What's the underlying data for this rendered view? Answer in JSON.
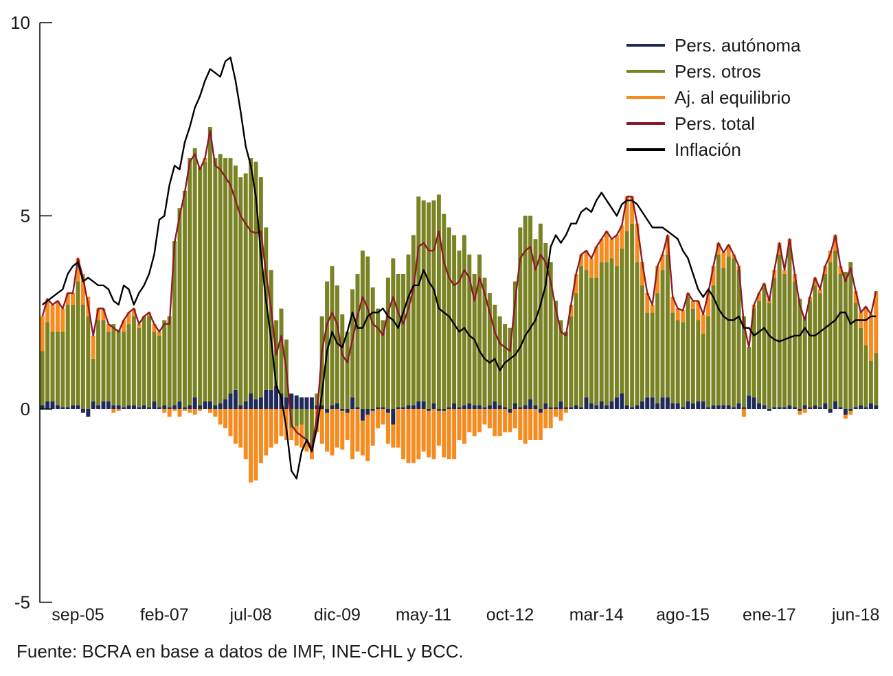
{
  "chart_data": {
    "type": "bar",
    "stacked": true,
    "title": "",
    "xlabel": "",
    "ylabel": "",
    "ylim": [
      -5,
      10
    ],
    "y_ticks": [
      "10",
      "5",
      "0",
      "-5"
    ],
    "y_tick_values": [
      10,
      5,
      0,
      -5
    ],
    "x_ticks": [
      {
        "label": "sep-05",
        "index": 7
      },
      {
        "label": "feb-07",
        "index": 24
      },
      {
        "label": "jul-08",
        "index": 41
      },
      {
        "label": "dic-09",
        "index": 58
      },
      {
        "label": "may-11",
        "index": 75
      },
      {
        "label": "oct-12",
        "index": 92
      },
      {
        "label": "mar-14",
        "index": 109
      },
      {
        "label": "ago-15",
        "index": 126
      },
      {
        "label": "ene-17",
        "index": 143
      },
      {
        "label": "jun-18",
        "index": 160
      }
    ],
    "grid": false,
    "legend_position": "top-right",
    "series": [
      {
        "name": "Pers. autónoma",
        "kind": "bar",
        "color": "#1f2a5a",
        "values": [
          0.1,
          0.2,
          0.2,
          0.1,
          0.05,
          0.05,
          0.1,
          0.1,
          -0.1,
          -0.2,
          0.2,
          0.1,
          0.2,
          0.2,
          0.1,
          0.1,
          0.05,
          0.1,
          0.1,
          0.05,
          0.1,
          0.05,
          0.2,
          0.05,
          0.1,
          0.05,
          0.1,
          0.2,
          0.05,
          0.1,
          0.3,
          0.1,
          0.2,
          0.2,
          0.1,
          0.15,
          0.25,
          0.4,
          0.5,
          0.1,
          0.2,
          0.4,
          0.25,
          0.3,
          0.5,
          0.5,
          0.6,
          0.4,
          0.3,
          0.4,
          0.35,
          0.3,
          0.3,
          0.3,
          0.1,
          0.1,
          -0.1,
          0.1,
          0.15,
          -0.05,
          -0.1,
          0.3,
          0.05,
          -0.3,
          -0.15,
          -0.05,
          0.05,
          0.05,
          -0.1,
          -0.4,
          0.05,
          0.05,
          0.1,
          0.1,
          0.2,
          0.2,
          -0.05,
          0.15,
          -0.05,
          -0.05,
          0.05,
          0.15,
          0.05,
          0.1,
          0.15,
          0.1,
          0.1,
          0.05,
          0.1,
          0.2,
          0.1,
          0.05,
          -0.1,
          0.15,
          0.05,
          0.1,
          0.25,
          0.1,
          -0.1,
          0.15,
          0.05,
          0.05,
          0.2,
          0.05,
          0.05,
          0.1,
          0.05,
          0.3,
          0.15,
          0.1,
          0.2,
          0.1,
          0.2,
          0.3,
          0.4,
          0.1,
          0.05,
          0.1,
          0.2,
          0.3,
          0.3,
          0.15,
          0.3,
          0.3,
          0.15,
          0.15,
          0.05,
          0.2,
          0.15,
          0.2,
          0.2,
          0.05,
          0.1,
          0.1,
          0.1,
          0.1,
          0.05,
          0.15,
          0.05,
          0.35,
          0.3,
          0.15,
          0.1,
          -0.05,
          0.05,
          0.05,
          0.05,
          0.1,
          0.05,
          -0.05,
          0.1,
          0.05,
          0.1,
          0.05,
          0.15,
          -0.1,
          0.2,
          0.05,
          -0.15,
          -0.05,
          0.05,
          0.1,
          0.05,
          0.15,
          0.1
        ]
      },
      {
        "name": "Pers. otros",
        "kind": "bar",
        "color": "#7a8324",
        "values": [
          1.4,
          2.05,
          1.8,
          1.9,
          1.95,
          2.65,
          2.6,
          3.2,
          2.7,
          2.4,
          1.1,
          2.2,
          2.1,
          1.8,
          2.1,
          1.95,
          1.95,
          2.1,
          2.3,
          2.05,
          2.3,
          2.35,
          1.8,
          1.85,
          2.2,
          2.35,
          4.25,
          5.0,
          5.6,
          6.4,
          6.45,
          6.15,
          6.2,
          7.1,
          6.4,
          6.45,
          6.25,
          6.1,
          5.8,
          5.9,
          5.9,
          6.1,
          6.15,
          5.7,
          4.2,
          3.1,
          1.7,
          2.2,
          1.5,
          -0.5,
          -0.45,
          -0.4,
          -0.8,
          -0.9,
          0.3,
          2.3,
          3.3,
          3.6,
          3.05,
          2.45,
          2.0,
          2.8,
          3.45,
          4.1,
          3.95,
          3.15,
          2.55,
          2.25,
          3.4,
          3.9,
          3.45,
          3.45,
          3.9,
          4.4,
          5.3,
          5.2,
          5.35,
          5.25,
          5.55,
          5.05,
          4.65,
          4.35,
          4.05,
          4.4,
          3.85,
          3.4,
          3.9,
          3.35,
          2.9,
          2.5,
          2.3,
          2.15,
          2.1,
          3.15,
          4.65,
          4.9,
          4.75,
          4.3,
          4.8,
          4.15,
          3.75,
          2.75,
          2.1,
          1.95,
          2.35,
          2.9,
          3.65,
          3.3,
          3.25,
          3.3,
          3.6,
          3.7,
          3.7,
          3.4,
          3.75,
          4.5,
          4.75,
          3.7,
          3.0,
          2.2,
          2.2,
          2.85,
          3.3,
          3.7,
          2.35,
          2.15,
          2.2,
          2.7,
          2.45,
          2.1,
          1.75,
          2.35,
          3.1,
          3.9,
          3.55,
          3.85,
          3.85,
          3.45,
          2.35,
          1.25,
          2.3,
          2.65,
          3.05,
          2.75,
          3.35,
          3.95,
          3.45,
          4.1,
          3.25,
          2.85,
          2.3,
          2.75,
          3.1,
          2.95,
          3.35,
          3.8,
          3.9,
          3.45,
          3.55,
          3.8,
          2.7,
          2.0,
          1.6,
          1.1,
          1.35
        ]
      },
      {
        "name": "Aj. al equilibrio",
        "kind": "bar",
        "color": "#f68b1f",
        "values": [
          0.9,
          0.6,
          0.7,
          0.8,
          0.6,
          0.3,
          0.3,
          0.6,
          0.8,
          0.5,
          0.6,
          0.3,
          0.3,
          0.2,
          -0.1,
          -0.05,
          0.3,
          0.3,
          0.2,
          0.1,
          0,
          0.1,
          0.2,
          0.1,
          -0.1,
          -0.2,
          -0.05,
          -0.2,
          -0.05,
          -0.1,
          -0.15,
          -0.05,
          0.1,
          -0.1,
          -0.2,
          -0.4,
          -0.5,
          -0.7,
          -0.9,
          -1.0,
          -1.3,
          -1.9,
          -1.85,
          -1.4,
          -1.2,
          -1.0,
          -0.9,
          -0.7,
          -0.8,
          -0.3,
          -0.5,
          -0.6,
          -0.3,
          -0.4,
          -0.6,
          -0.9,
          -1.0,
          -1.2,
          -1.0,
          -1.0,
          -0.7,
          -1.3,
          -1.1,
          -0.9,
          -1.2,
          -0.9,
          -0.5,
          -0.4,
          -0.8,
          -0.6,
          -1.0,
          -1.3,
          -1.4,
          -1.4,
          -1.3,
          -1.1,
          -1.2,
          -1.3,
          -0.9,
          -1.2,
          -1.3,
          -1.3,
          -0.8,
          -0.9,
          -0.6,
          -0.7,
          -0.6,
          -0.4,
          -0.5,
          -0.7,
          -0.7,
          -0.6,
          -0.5,
          -0.5,
          -0.8,
          -0.9,
          -0.8,
          -0.8,
          -0.7,
          -0.5,
          -0.5,
          -0.2,
          -0.3,
          -0.1,
          0.3,
          0.5,
          0.3,
          0.5,
          0.5,
          0.8,
          0.6,
          0.8,
          0.5,
          0.8,
          0.6,
          0.9,
          0.7,
          1.0,
          0.6,
          0.5,
          0.2,
          0.7,
          0.4,
          0.5,
          0.4,
          0.3,
          0.3,
          0.1,
          0.2,
          0.5,
          0.5,
          0.6,
          0.5,
          0.3,
          0.4,
          0.3,
          0.1,
          0.1,
          -0.2,
          0,
          0.1,
          0.2,
          0.1,
          0.1,
          0.2,
          0.3,
          0.1,
          0.2,
          0.2,
          -0.1,
          -0.1,
          0.1,
          0.2,
          0.1,
          0.2,
          0.3,
          0.4,
          0.2,
          -0.1,
          -0.1,
          0.3,
          0.4,
          1.0,
          1.2,
          1.6
        ]
      },
      {
        "name": "Pers. total",
        "kind": "line",
        "color": "#8b1a2a",
        "values": [
          2.4,
          2.85,
          2.7,
          2.8,
          2.6,
          3.0,
          3.0,
          3.9,
          3.4,
          2.7,
          1.9,
          2.6,
          2.6,
          2.2,
          2.1,
          2.0,
          2.3,
          2.5,
          2.6,
          2.2,
          2.4,
          2.5,
          2.2,
          2.0,
          2.2,
          2.2,
          4.3,
          5.0,
          5.6,
          6.4,
          6.6,
          6.2,
          6.5,
          7.2,
          6.3,
          6.2,
          6.0,
          5.8,
          5.4,
          5.0,
          4.8,
          4.6,
          4.55,
          4.6,
          3.5,
          2.6,
          1.4,
          1.9,
          1.0,
          -0.4,
          -0.6,
          -0.7,
          -0.8,
          -1.0,
          -0.2,
          1.5,
          2.2,
          2.5,
          2.2,
          1.4,
          1.2,
          1.8,
          2.4,
          2.9,
          2.6,
          2.2,
          2.1,
          1.9,
          2.5,
          2.9,
          2.5,
          2.2,
          2.6,
          3.1,
          4.2,
          4.3,
          4.1,
          4.1,
          4.6,
          3.8,
          3.4,
          3.2,
          3.3,
          3.6,
          3.4,
          2.8,
          3.4,
          3.0,
          2.5,
          2.0,
          1.7,
          1.6,
          1.5,
          2.8,
          3.9,
          4.1,
          4.2,
          3.6,
          4.0,
          3.8,
          3.3,
          2.6,
          2.0,
          1.9,
          2.7,
          3.5,
          4.0,
          4.1,
          3.9,
          4.2,
          4.4,
          4.6,
          4.4,
          4.5,
          4.75,
          5.5,
          5.5,
          4.8,
          3.8,
          3.0,
          2.7,
          3.7,
          4.0,
          4.5,
          2.9,
          2.6,
          2.55,
          3.0,
          2.8,
          2.8,
          2.45,
          3.0,
          3.7,
          4.3,
          4.05,
          4.25,
          4.0,
          3.7,
          2.2,
          1.6,
          2.7,
          3.0,
          3.25,
          2.8,
          3.6,
          4.3,
          3.6,
          4.4,
          3.5,
          2.7,
          2.3,
          2.9,
          3.4,
          3.1,
          3.7,
          4.0,
          4.5,
          3.7,
          3.3,
          3.65,
          3.05,
          2.5,
          2.65,
          2.45,
          3.05
        ]
      },
      {
        "name": "Inflación",
        "kind": "line",
        "color": "#000000",
        "values": [
          2.7,
          2.8,
          2.9,
          3.0,
          3.1,
          3.5,
          3.7,
          3.8,
          3.3,
          3.4,
          3.3,
          3.2,
          3.2,
          3.1,
          2.8,
          2.7,
          3.2,
          3.1,
          2.7,
          3.0,
          3.2,
          3.5,
          4.0,
          4.9,
          5.0,
          5.8,
          6.3,
          6.2,
          6.9,
          7.3,
          7.8,
          8.1,
          8.5,
          8.8,
          8.7,
          8.6,
          9.0,
          9.1,
          8.5,
          7.7,
          6.8,
          6.3,
          5.5,
          4.0,
          2.8,
          1.8,
          0.6,
          0.3,
          -0.5,
          -1.6,
          -1.8,
          -1.1,
          -0.8,
          -1.1,
          -0.5,
          0.4,
          1.5,
          2.0,
          1.7,
          1.6,
          2.0,
          2.5,
          2.1,
          2.1,
          2.4,
          2.5,
          2.5,
          2.6,
          2.4,
          2.3,
          2.1,
          2.5,
          2.9,
          3.2,
          3.2,
          3.6,
          3.3,
          3.1,
          2.6,
          2.5,
          2.4,
          2.2,
          2.0,
          2.1,
          1.9,
          1.8,
          1.5,
          1.3,
          1.2,
          1.3,
          1.0,
          1.2,
          1.3,
          1.4,
          1.6,
          1.9,
          2.1,
          2.3,
          2.7,
          3.2,
          4.2,
          4.5,
          4.3,
          4.5,
          4.8,
          4.8,
          5.1,
          5.2,
          5.1,
          5.4,
          5.6,
          5.4,
          5.2,
          5.0,
          5.3,
          5.4,
          5.4,
          5.3,
          5.1,
          4.9,
          4.7,
          4.7,
          4.7,
          4.6,
          4.5,
          4.4,
          4.1,
          3.9,
          3.5,
          3.1,
          2.9,
          3.1,
          2.9,
          2.6,
          2.4,
          2.3,
          2.3,
          2.4,
          2.1,
          2.1,
          1.9,
          2.0,
          2.1,
          1.9,
          1.8,
          1.75,
          1.8,
          1.85,
          1.9,
          1.9,
          2.1,
          1.9,
          1.9,
          2.0,
          2.1,
          2.2,
          2.3,
          2.5,
          2.5,
          2.2,
          2.3,
          2.3,
          2.3,
          2.4,
          2.4
        ]
      }
    ]
  },
  "source": "Fuente: BCRA en base a datos de IMF, INE-CHL y BCC."
}
